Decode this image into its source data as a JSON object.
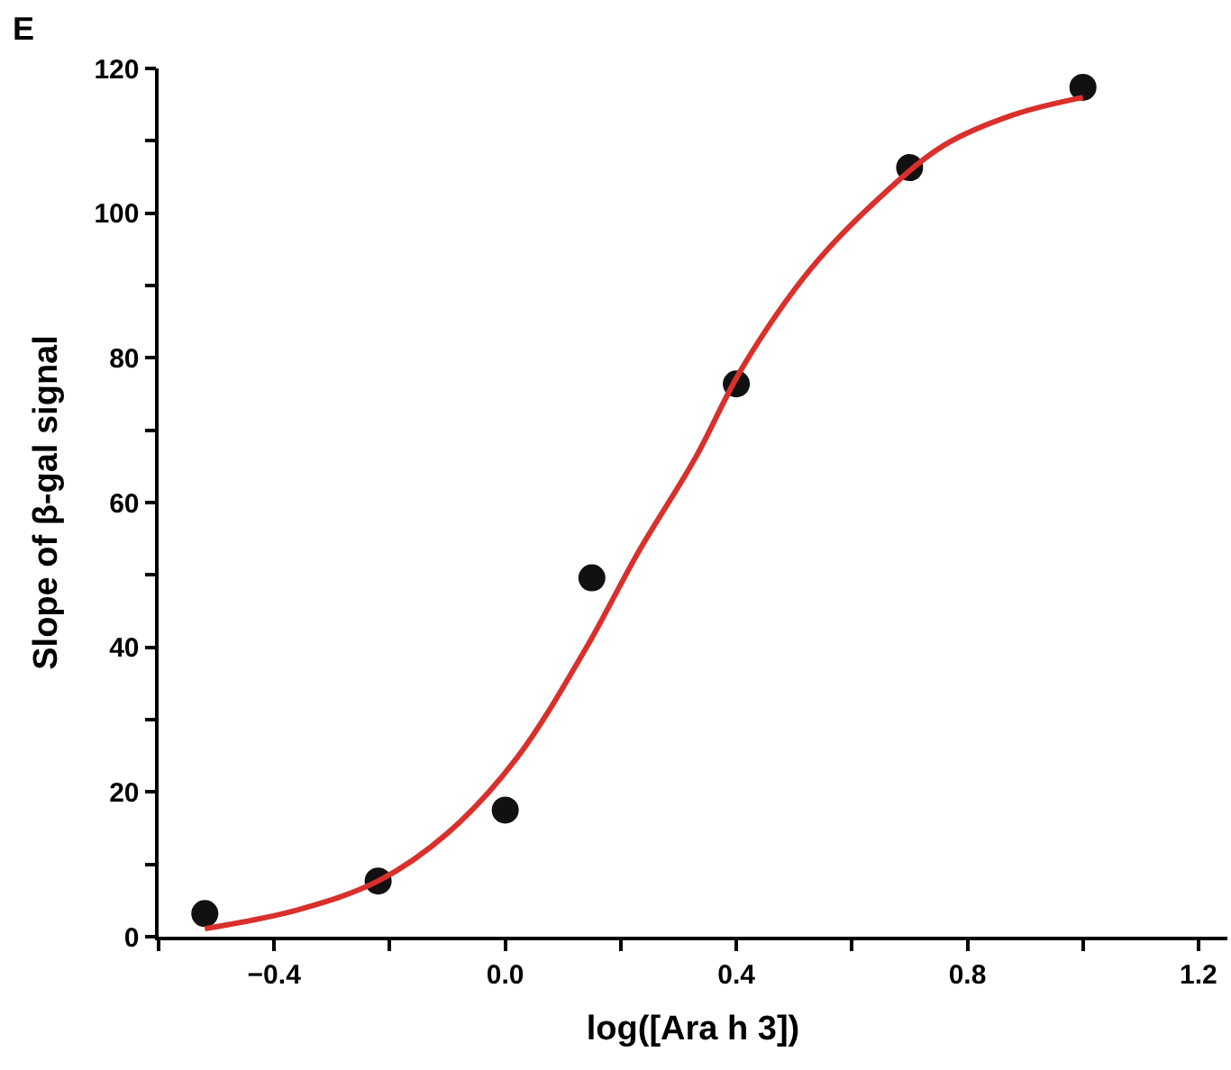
{
  "chart_data": {
    "type": "scatter",
    "xlabel": "log([Ara h 3])",
    "ylabel": "Slope of β-gal signal",
    "annotations": [
      "E"
    ],
    "xlim": [
      -0.6,
      1.25
    ],
    "ylim": [
      0,
      120
    ],
    "xticks": [
      {
        "value": -0.6,
        "label": null
      },
      -0.4,
      {
        "value": -0.2,
        "label": null
      },
      {
        "value": 0,
        "label": "0.0"
      },
      {
        "value": 0.2,
        "label": null
      },
      0.4,
      {
        "value": 0.6,
        "label": null
      },
      0.8,
      {
        "value": 1.0,
        "label": null
      },
      1.2
    ],
    "yticks": [
      0,
      {
        "value": 10,
        "label": null
      },
      20,
      {
        "value": 30,
        "label": null
      },
      40,
      {
        "value": 50,
        "label": null
      },
      60,
      {
        "value": 70,
        "label": null
      },
      80,
      {
        "value": 90,
        "label": null
      },
      100,
      {
        "value": 110,
        "label": null
      },
      120
    ],
    "series": [
      {
        "marker": "circle",
        "color": "#111111",
        "x": [
          -0.52,
          -0.22,
          0.0,
          0.15,
          0.4,
          0.7,
          1.0
        ],
        "values": [
          3.2,
          7.7,
          17.5,
          49.6,
          76.4,
          106.3,
          117.4
        ]
      },
      {
        "type": "line",
        "marker": "none",
        "line_style": "solid",
        "color": "#d9302c",
        "x": [
          -0.52,
          -0.36,
          -0.22,
          -0.1,
          0.02,
          0.14,
          0.23,
          0.33,
          0.41,
          0.53,
          0.65,
          0.76,
          0.88,
          1.0
        ],
        "values": [
          1.1,
          3.7,
          7.7,
          14.3,
          24.7,
          39.9,
          53.1,
          66.3,
          78.6,
          92.4,
          102.3,
          109.4,
          113.6,
          116.0
        ]
      }
    ]
  }
}
